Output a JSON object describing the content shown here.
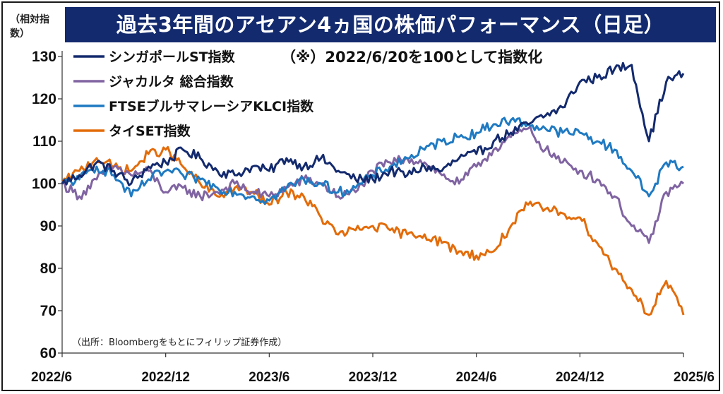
{
  "chart_data": {
    "type": "line",
    "title": "過去3年間のアセアン4ヵ国の株価パフォーマンス（日足）",
    "ylabel": "（相対指数）",
    "note": "（※）2022/6/20を100として指数化",
    "source": "（出所：Bloombergをもとにフィリップ証券作成）",
    "ylim": [
      60,
      130
    ],
    "yticks": [
      "130",
      "120",
      "110",
      "100",
      "90",
      "80",
      "70",
      "60"
    ],
    "xticks": [
      "2022/6",
      "2022/12",
      "2023/6",
      "2023/12",
      "2024/6",
      "2024/12",
      "2025/6"
    ],
    "grid": false,
    "legend_position": "top-left",
    "series": [
      {
        "name": "シンガポールST指数",
        "color": "#132a6e",
        "x": [
          "2022/6",
          "2022/7",
          "2022/8",
          "2022/9",
          "2022/10",
          "2022/11",
          "2022/12",
          "2023/1",
          "2023/2",
          "2023/3",
          "2023/4",
          "2023/5",
          "2023/6",
          "2023/7",
          "2023/8",
          "2023/9",
          "2023/10",
          "2023/11",
          "2023/12",
          "2024/1",
          "2024/2",
          "2024/3",
          "2024/4",
          "2024/5",
          "2024/6",
          "2024/7",
          "2024/8",
          "2024/9",
          "2024/10",
          "2024/11",
          "2024/12",
          "2025/1",
          "2025/2",
          "2025/3",
          "2025/4",
          "2025/5",
          "2025/6"
        ],
        "values": [
          100,
          102,
          105,
          103,
          100,
          104,
          105,
          108,
          106,
          103,
          102,
          104,
          103,
          106,
          104,
          106,
          103,
          101,
          101,
          103,
          102,
          104,
          103,
          106,
          107,
          110,
          112,
          114,
          116,
          118,
          124,
          125,
          127,
          128,
          110,
          124,
          126
        ]
      },
      {
        "name": "ジャカルタ 総合指数",
        "color": "#8064a2",
        "x": [
          "2022/6",
          "2022/7",
          "2022/8",
          "2022/9",
          "2022/10",
          "2022/11",
          "2022/12",
          "2023/1",
          "2023/2",
          "2023/3",
          "2023/4",
          "2023/5",
          "2023/6",
          "2023/7",
          "2023/8",
          "2023/9",
          "2023/10",
          "2023/11",
          "2023/12",
          "2024/1",
          "2024/2",
          "2024/3",
          "2024/4",
          "2024/5",
          "2024/6",
          "2024/7",
          "2024/8",
          "2024/9",
          "2024/10",
          "2024/11",
          "2024/12",
          "2025/1",
          "2025/2",
          "2025/3",
          "2025/4",
          "2025/5",
          "2025/6"
        ],
        "values": [
          100,
          97,
          101,
          104,
          102,
          103,
          98,
          99,
          97,
          98,
          100,
          98,
          97,
          99,
          101,
          100,
          97,
          98,
          103,
          105,
          106,
          105,
          102,
          100,
          104,
          108,
          111,
          113,
          108,
          105,
          103,
          101,
          97,
          90,
          86,
          98,
          100
        ]
      },
      {
        "name": "FTSEブルサマレーシアKLCI指数",
        "color": "#1f7ac2",
        "x": [
          "2022/6",
          "2022/7",
          "2022/8",
          "2022/9",
          "2022/10",
          "2022/11",
          "2022/12",
          "2023/1",
          "2023/2",
          "2023/3",
          "2023/4",
          "2023/5",
          "2023/6",
          "2023/7",
          "2023/8",
          "2023/9",
          "2023/10",
          "2023/11",
          "2023/12",
          "2024/1",
          "2024/2",
          "2024/3",
          "2024/4",
          "2024/5",
          "2024/6",
          "2024/7",
          "2024/8",
          "2024/9",
          "2024/10",
          "2024/11",
          "2024/12",
          "2025/1",
          "2025/2",
          "2025/3",
          "2025/4",
          "2025/5",
          "2025/6"
        ],
        "values": [
          100,
          101,
          104,
          102,
          97,
          101,
          103,
          102,
          101,
          99,
          98,
          97,
          96,
          99,
          101,
          100,
          98,
          99,
          102,
          104,
          106,
          108,
          110,
          111,
          112,
          114,
          115,
          114,
          113,
          112,
          112,
          110,
          108,
          103,
          97,
          105,
          104
        ]
      },
      {
        "name": "タイSET指数",
        "color": "#e36c0a",
        "x": [
          "2022/6",
          "2022/7",
          "2022/8",
          "2022/9",
          "2022/10",
          "2022/11",
          "2022/12",
          "2023/1",
          "2023/2",
          "2023/3",
          "2023/4",
          "2023/5",
          "2023/6",
          "2023/7",
          "2023/8",
          "2023/9",
          "2023/10",
          "2023/11",
          "2023/12",
          "2024/1",
          "2024/2",
          "2024/3",
          "2024/4",
          "2024/5",
          "2024/6",
          "2024/7",
          "2024/8",
          "2024/9",
          "2024/10",
          "2024/11",
          "2024/12",
          "2025/1",
          "2025/2",
          "2025/3",
          "2025/4",
          "2025/5",
          "2025/6"
        ],
        "values": [
          100,
          103,
          106,
          104,
          103,
          107,
          108,
          104,
          100,
          97,
          99,
          98,
          95,
          98,
          97,
          92,
          88,
          89,
          90,
          89,
          88,
          88,
          86,
          84,
          83,
          84,
          90,
          95,
          94,
          93,
          92,
          86,
          80,
          75,
          69,
          77,
          69
        ]
      }
    ]
  }
}
